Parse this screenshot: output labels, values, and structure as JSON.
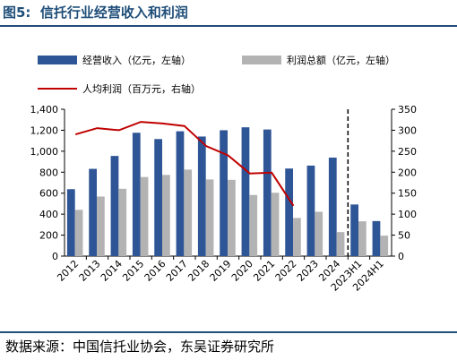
{
  "figure": {
    "label": "图5:",
    "title": "信托行业经营收入和利润",
    "source": "数据来源：中国信托业协会，东吴证券研究所"
  },
  "colors": {
    "revenue": "#2e5596",
    "profit": "#b3b3b3",
    "per_capita": "#c00000",
    "title": "#1f4e79"
  },
  "chart_data": {
    "type": "bar",
    "categories": [
      "2012",
      "2013",
      "2014",
      "2015",
      "2016",
      "2017",
      "2018",
      "2019",
      "2020",
      "2021",
      "2022",
      "2023",
      "2024",
      "2023H1",
      "2024H1"
    ],
    "series": [
      {
        "name": "经营收入（亿元，左轴）",
        "type": "bar",
        "axis": "left",
        "values": [
          638,
          832,
          955,
          1176,
          1116,
          1190,
          1140,
          1200,
          1228,
          1207,
          835,
          863,
          939,
          492,
          334
        ]
      },
      {
        "name": "利润总额（亿元，左轴）",
        "type": "bar",
        "axis": "left",
        "values": [
          441,
          568,
          642,
          754,
          774,
          825,
          731,
          727,
          583,
          604,
          364,
          423,
          229,
          332,
          195
        ]
      },
      {
        "name": "人均利润（百万元，右轴）",
        "type": "line",
        "axis": "right",
        "values": [
          290,
          305,
          300,
          320,
          316,
          310,
          262,
          240,
          197,
          199,
          120,
          null,
          null,
          null,
          null
        ]
      }
    ],
    "y_left": {
      "ylim": [
        0,
        1400
      ],
      "ticks": [
        "0",
        "200",
        "400",
        "600",
        "800",
        "1,000",
        "1,200",
        "1,400"
      ]
    },
    "y_right": {
      "ylim": [
        0,
        350
      ],
      "ticks": [
        "0",
        "50",
        "100",
        "150",
        "200",
        "250",
        "300",
        "350"
      ]
    },
    "divider_after": "2024",
    "legend_placement": "top",
    "grid": false
  }
}
